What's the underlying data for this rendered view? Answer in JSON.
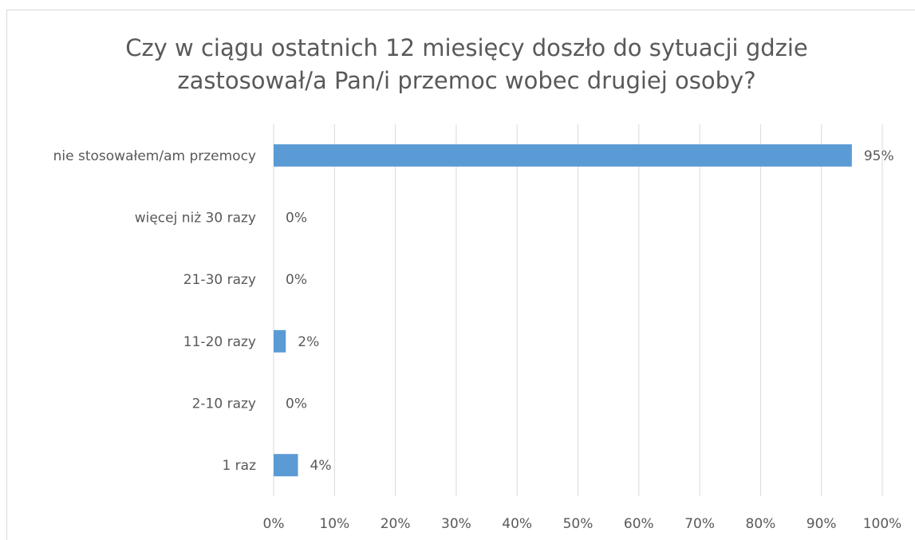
{
  "chart_data": {
    "type": "bar",
    "orientation": "horizontal",
    "title": [
      "Czy w ciągu ostatnich 12 miesięcy doszło do sytuacji gdzie",
      "zastosował/a Pan/i przemoc wobec drugiej osoby?"
    ],
    "categories": [
      "nie stosowałem/am przemocy",
      "więcej niż 30 razy",
      "21-30 razy",
      "11-20 razy",
      "2-10 razy",
      "1 raz"
    ],
    "values": [
      95,
      0,
      0,
      2,
      0,
      4
    ],
    "value_labels": [
      "95%",
      "0%",
      "0%",
      "2%",
      "0%",
      "4%"
    ],
    "color": "#5b9bd5",
    "xlim": [
      0,
      100
    ],
    "xticks": [
      {
        "value": 0,
        "label": "0%"
      },
      {
        "value": 10,
        "label": "10%"
      },
      {
        "value": 20,
        "label": "20%"
      },
      {
        "value": 30,
        "label": "30%"
      },
      {
        "value": 40,
        "label": "40%"
      },
      {
        "value": 50,
        "label": "50%"
      },
      {
        "value": 60,
        "label": "60%"
      },
      {
        "value": 70,
        "label": "70%"
      },
      {
        "value": 80,
        "label": "80%"
      },
      {
        "value": 90,
        "label": "90%"
      },
      {
        "value": 100,
        "label": "100%"
      }
    ],
    "grid": true
  }
}
